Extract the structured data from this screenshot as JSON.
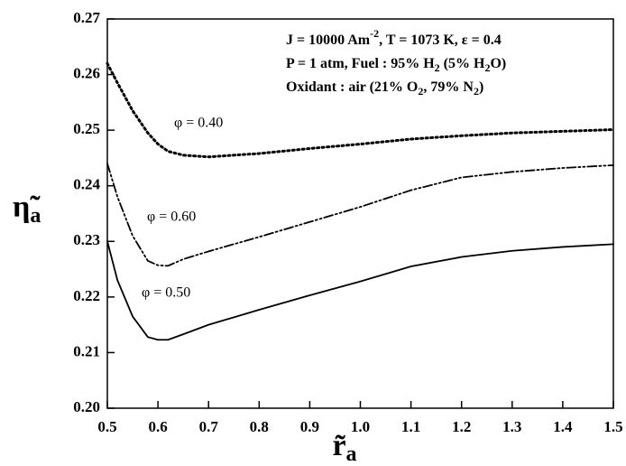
{
  "chart_data": {
    "type": "line",
    "xlabel": [
      "r̃",
      "a"
    ],
    "ylabel": [
      "η̃",
      "a"
    ],
    "x": [
      0.5,
      0.52,
      0.55,
      0.58,
      0.6,
      0.62,
      0.65,
      0.7,
      0.8,
      0.9,
      1.0,
      1.1,
      1.2,
      1.3,
      1.4,
      1.5
    ],
    "series": [
      {
        "name": "φ = 0.40",
        "color": "#000000",
        "style": "dotted",
        "values": [
          0.262,
          0.2585,
          0.2535,
          0.2495,
          0.2475,
          0.2462,
          0.2455,
          0.2452,
          0.2458,
          0.2467,
          0.2475,
          0.2484,
          0.249,
          0.2495,
          0.2498,
          0.2501
        ]
      },
      {
        "name": "φ = 0.60",
        "color": "#000000",
        "style": "dashdot",
        "values": [
          0.244,
          0.238,
          0.231,
          0.2265,
          0.2257,
          0.2256,
          0.2268,
          0.2282,
          0.2308,
          0.2335,
          0.2362,
          0.2392,
          0.2415,
          0.2425,
          0.2432,
          0.2437
        ]
      },
      {
        "name": "φ = 0.50",
        "color": "#000000",
        "style": "solid",
        "values": [
          0.23,
          0.223,
          0.2165,
          0.2128,
          0.2123,
          0.2123,
          0.2133,
          0.215,
          0.2177,
          0.2203,
          0.2228,
          0.2255,
          0.2272,
          0.2283,
          0.229,
          0.2295
        ]
      }
    ],
    "annotations": [
      [
        {
          "text": "J = 10000 Am"
        },
        {
          "sup": "-2"
        },
        {
          "text": ", T = 1073 K, ε = 0.4"
        }
      ],
      [
        {
          "text": "P = 1 atm, Fuel : 95% H"
        },
        {
          "sub": "2"
        },
        {
          "text": " (5% H"
        },
        {
          "sub": "2"
        },
        {
          "text": "O)"
        }
      ],
      [
        {
          "text": "Oxidant : air (21% O"
        },
        {
          "sub": "2"
        },
        {
          "text": ", 79% N"
        },
        {
          "sub": "2"
        },
        {
          "text": ")"
        }
      ]
    ],
    "xlim": [
      0.5,
      1.5
    ],
    "ylim": [
      0.2,
      0.27
    ],
    "xticks": [
      0.5,
      0.6,
      0.7,
      0.8,
      0.9,
      {
        "value": 1.0,
        "label": "1.0"
      },
      1.1,
      1.2,
      1.3,
      1.4,
      1.5
    ],
    "yticks": [
      {
        "value": 0.2,
        "label": "0.20"
      },
      0.21,
      0.22,
      0.23,
      0.24,
      0.25,
      0.26,
      0.27
    ]
  }
}
